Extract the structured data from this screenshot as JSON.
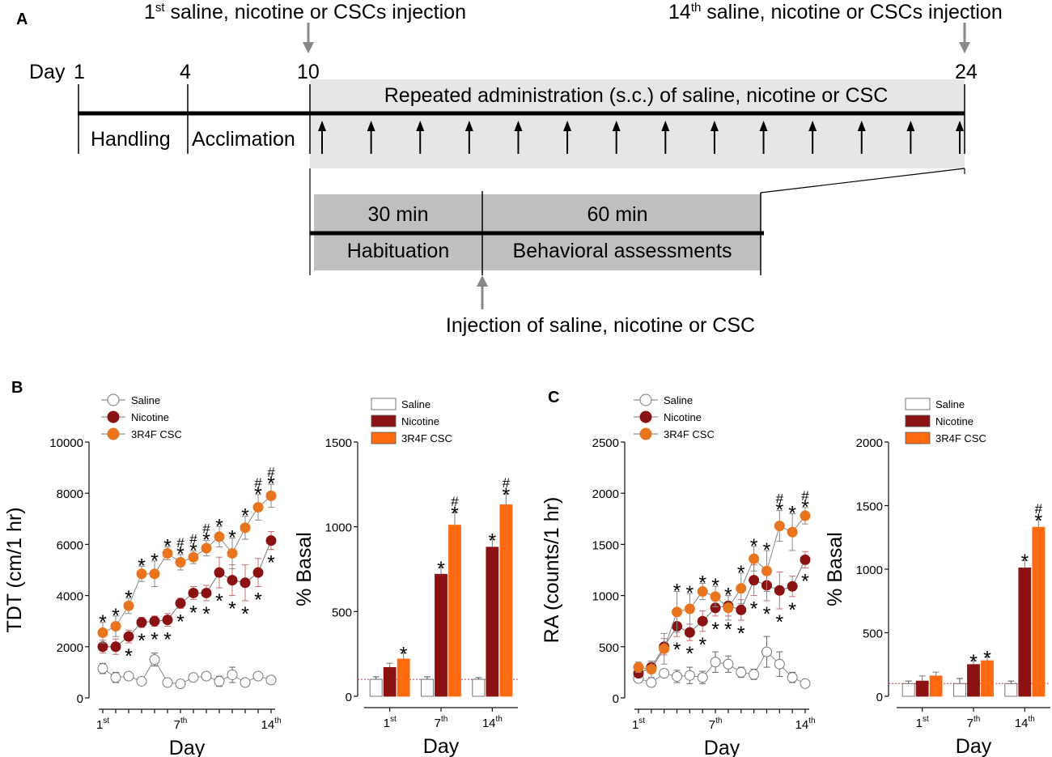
{
  "panel_a": {
    "letter": "A",
    "first_injection_label": "saline, nicotine or CSCs injection",
    "first_injection_ord": "1",
    "first_injection_sup": "st",
    "last_injection_label": "saline, nicotine or CSCs injection",
    "last_injection_ord": "14",
    "last_injection_sup": "th",
    "day_label": "Day",
    "days": [
      "1",
      "4",
      "10",
      "24"
    ],
    "phases": [
      "Handling",
      "Acclimation"
    ],
    "repeated_label": "Repeated administration (s.c.) of saline, nicotine or CSC",
    "session": {
      "habituation_time": "30 min",
      "assessment_time": "60 min",
      "habituation_label": "Habituation",
      "assessment_label": "Behavioral assessments",
      "injection_label": "Injection of saline, nicotine or CSC"
    }
  },
  "colors": {
    "saline": "#ffffff",
    "nicotine": "#8b1212",
    "csc_line": "#e8741e",
    "csc_bar": "#ff6a10",
    "error_red": "#c87070",
    "arrow_gray": "#888888",
    "box_gray": "#bfbfbf",
    "light_gray": "#e6e6e6"
  },
  "chart_data": [
    {
      "id": "B-line",
      "panel_letter": "B",
      "type": "line",
      "ylabel": "TDT (cm/1 hr)",
      "xlabel": "Day",
      "ylim": [
        0,
        10000
      ],
      "yticks": [
        "0",
        "2000",
        "4000",
        "6000",
        "8000",
        "10000"
      ],
      "xticks": [
        {
          "day": 1,
          "num": "1",
          "sup": "st"
        },
        {
          "day": 7,
          "num": "7",
          "sup": "th"
        },
        {
          "day": 14,
          "num": "14",
          "sup": "th"
        }
      ],
      "x": [
        1,
        2,
        3,
        4,
        5,
        6,
        7,
        8,
        9,
        10,
        11,
        12,
        13,
        14
      ],
      "legend": [
        "Saline",
        "Nicotine",
        "3R4F CSC"
      ],
      "series": [
        {
          "name": "Saline",
          "values": [
            1150,
            800,
            850,
            650,
            1500,
            600,
            550,
            800,
            850,
            650,
            900,
            600,
            850,
            700
          ],
          "errors": [
            200,
            200,
            150,
            150,
            250,
            150,
            100,
            150,
            150,
            200,
            300,
            150,
            150,
            120
          ]
        },
        {
          "name": "Nicotine",
          "values": [
            2000,
            2000,
            2400,
            2950,
            3000,
            3050,
            3700,
            4100,
            4100,
            4900,
            4600,
            4500,
            4900,
            6150
          ],
          "errors": [
            250,
            300,
            250,
            200,
            200,
            250,
            200,
            250,
            300,
            600,
            600,
            700,
            550,
            350
          ]
        },
        {
          "name": "3R4F CSC",
          "values": [
            2550,
            2800,
            3600,
            4850,
            4850,
            5650,
            5300,
            5500,
            5850,
            6300,
            5650,
            6650,
            7450,
            7900
          ],
          "errors": [
            400,
            400,
            300,
            300,
            500,
            250,
            300,
            250,
            300,
            400,
            600,
            450,
            500,
            450
          ]
        }
      ],
      "star_labels": [
        "*",
        "*",
        "*",
        "*",
        "*",
        "*",
        "*",
        "*",
        "*",
        "*",
        "*",
        "*",
        "*",
        "*",
        "*",
        "*",
        "*",
        "*",
        "*",
        "*",
        "*",
        "*",
        "*",
        "*",
        "*",
        "*"
      ],
      "hash_labels": [
        "#",
        "#",
        "#",
        "#",
        "#"
      ],
      "annotations": {
        "csc_star_days": [
          1,
          2,
          3,
          4,
          5,
          6,
          7,
          8,
          9,
          10,
          11,
          12,
          13,
          14
        ],
        "csc_hash_days": [
          7,
          8,
          9,
          13,
          14
        ],
        "nicotine_star_days": [
          3,
          4,
          5,
          6,
          7,
          8,
          9,
          10,
          11,
          12,
          13,
          14
        ]
      }
    },
    {
      "id": "B-bar",
      "type": "bar",
      "ylabel": "% Basal",
      "xlabel": "Day",
      "ylim": [
        0,
        1500
      ],
      "yticks": [
        "0",
        "500",
        "1000",
        "1500"
      ],
      "categories": [
        {
          "num": "1",
          "sup": "st"
        },
        {
          "num": "7",
          "sup": "th"
        },
        {
          "num": "14",
          "sup": "th"
        }
      ],
      "legend": [
        "Saline",
        "Nicotine",
        "3R4F CSC"
      ],
      "baseline": 100,
      "series": [
        {
          "name": "Saline",
          "values": [
            100,
            100,
            100
          ],
          "errors": [
            15,
            15,
            10
          ]
        },
        {
          "name": "Nicotine",
          "values": [
            170,
            720,
            880
          ],
          "errors": [
            25,
            40,
            45
          ]
        },
        {
          "name": "3R4F CSC",
          "values": [
            220,
            1010,
            1130
          ],
          "errors": [
            35,
            75,
            65
          ]
        }
      ],
      "star_labels": [
        "*",
        "*",
        "*",
        "*",
        "*"
      ],
      "hash_labels": [
        "#",
        "#"
      ],
      "annotations": {
        "nicotine_star": [
          false,
          true,
          true
        ],
        "csc_star": [
          true,
          true,
          true
        ],
        "csc_hash": [
          false,
          true,
          true
        ]
      }
    },
    {
      "id": "C-line",
      "panel_letter": "C",
      "type": "line",
      "ylabel": "RA (counts/1 hr)",
      "xlabel": "Day",
      "ylim": [
        0,
        2500
      ],
      "yticks": [
        "0",
        "500",
        "1000",
        "1500",
        "2000",
        "2500"
      ],
      "xticks": [
        {
          "day": 1,
          "num": "1",
          "sup": "st"
        },
        {
          "day": 7,
          "num": "7",
          "sup": "th"
        },
        {
          "day": 14,
          "num": "14",
          "sup": "th"
        }
      ],
      "x": [
        1,
        2,
        3,
        4,
        5,
        6,
        7,
        8,
        9,
        10,
        11,
        12,
        13,
        14
      ],
      "legend": [
        "Saline",
        "Nicotine",
        "3R4F CSC"
      ],
      "series": [
        {
          "name": "Saline",
          "values": [
            190,
            150,
            240,
            210,
            220,
            200,
            350,
            330,
            250,
            230,
            450,
            330,
            200,
            140
          ],
          "errors": [
            40,
            40,
            40,
            60,
            80,
            60,
            100,
            80,
            50,
            50,
            150,
            120,
            50,
            30
          ]
        },
        {
          "name": "Nicotine",
          "values": [
            240,
            300,
            500,
            700,
            640,
            750,
            880,
            900,
            860,
            1150,
            1100,
            1050,
            1090,
            1350
          ],
          "errors": [
            40,
            60,
            80,
            100,
            80,
            100,
            80,
            100,
            100,
            150,
            150,
            180,
            100,
            80
          ]
        },
        {
          "name": "3R4F CSC",
          "values": [
            300,
            280,
            480,
            840,
            870,
            1040,
            990,
            880,
            1070,
            1360,
            1240,
            1680,
            1620,
            1780
          ],
          "errors": [
            50,
            80,
            150,
            200,
            150,
            80,
            100,
            120,
            150,
            120,
            200,
            150,
            180,
            80
          ]
        }
      ],
      "star_labels": [
        "*",
        "*",
        "*",
        "*",
        "*",
        "*",
        "*",
        "*",
        "*",
        "*",
        "*",
        "*",
        "*",
        "*",
        "*",
        "*",
        "*",
        "*",
        "*",
        "*",
        "*",
        "*"
      ],
      "hash_labels": [
        "#",
        "#"
      ],
      "annotations": {
        "csc_star_days": [
          4,
          5,
          6,
          7,
          8,
          9,
          10,
          11,
          12,
          13,
          14
        ],
        "csc_hash_days": [
          12,
          14
        ],
        "nicotine_star_days": [
          4,
          5,
          6,
          7,
          8,
          9,
          10,
          11,
          12,
          13,
          14
        ]
      }
    },
    {
      "id": "C-bar",
      "type": "bar",
      "ylabel": "% Basal",
      "xlabel": "Day",
      "ylim": [
        0,
        2000
      ],
      "yticks": [
        "0",
        "500",
        "1000",
        "1500",
        "2000"
      ],
      "categories": [
        {
          "num": "1",
          "sup": "st"
        },
        {
          "num": "7",
          "sup": "th"
        },
        {
          "num": "14",
          "sup": "th"
        }
      ],
      "legend": [
        "Saline",
        "Nicotine",
        "3R4F CSC"
      ],
      "baseline": 100,
      "series": [
        {
          "name": "Saline",
          "values": [
            100,
            100,
            100
          ],
          "errors": [
            20,
            40,
            20
          ]
        },
        {
          "name": "Nicotine",
          "values": [
            120,
            250,
            1010
          ],
          "errors": [
            40,
            30,
            60
          ]
        },
        {
          "name": "3R4F CSC",
          "values": [
            160,
            280,
            1330
          ],
          "errors": [
            30,
            30,
            60
          ]
        }
      ],
      "star_labels": [
        "*",
        "*",
        "*",
        "*"
      ],
      "hash_labels": [
        "#"
      ],
      "annotations": {
        "nicotine_star": [
          false,
          true,
          true
        ],
        "csc_star": [
          false,
          true,
          true
        ],
        "csc_hash": [
          false,
          false,
          true
        ]
      }
    }
  ]
}
